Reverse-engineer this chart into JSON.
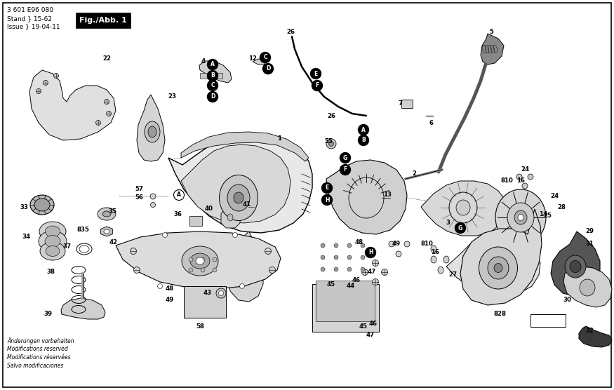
{
  "title": "Fig./Abb. 1",
  "header_line1": "3 601 E96 080",
  "header_line2": "Stand  } 15-62",
  "header_line3": "Issue  } 19-04-11",
  "footer_lines": [
    "Änderungen vorbehalten",
    "Modifications reserved",
    "Modifications réservées",
    "Salvo modificaciones"
  ],
  "bg_color": "#ffffff"
}
